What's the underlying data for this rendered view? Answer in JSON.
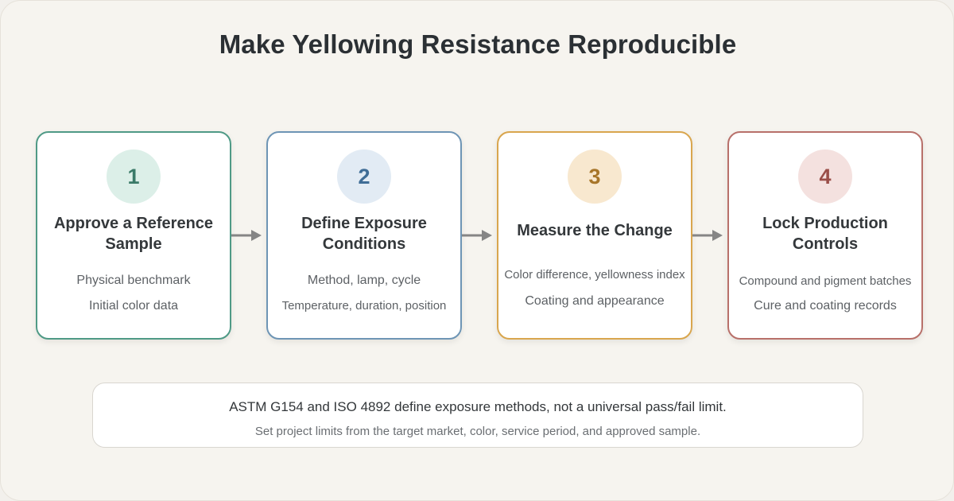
{
  "title": "Make Yellowing Resistance Reproducible",
  "steps": [
    {
      "number": "1",
      "heading_lines": [
        "Approve a Reference",
        "Sample"
      ],
      "details": [
        "Physical benchmark",
        "Initial color data"
      ],
      "color": "#4f9a86"
    },
    {
      "number": "2",
      "heading_lines": [
        "Define Exposure",
        "Conditions"
      ],
      "details": [
        "Method, lamp, cycle",
        "Temperature, duration, position"
      ],
      "color": "#6e95b5"
    },
    {
      "number": "3",
      "heading_lines": [
        "Measure the Change"
      ],
      "details": [
        "Color difference, yellowness index",
        "Coating and appearance"
      ],
      "color": "#d9a64e"
    },
    {
      "number": "4",
      "heading_lines": [
        "Lock Production",
        "Controls"
      ],
      "details": [
        "Compound and pigment batches",
        "Cure and coating records"
      ],
      "color": "#b8706a"
    }
  ],
  "note": {
    "primary": "ASTM G154 and ISO 4892 define exposure methods, not a universal pass/fail limit.",
    "secondary": "Set project limits from the target market, color, service period, and approved sample."
  },
  "icons": {
    "arrow": "arrow-right-icon"
  }
}
